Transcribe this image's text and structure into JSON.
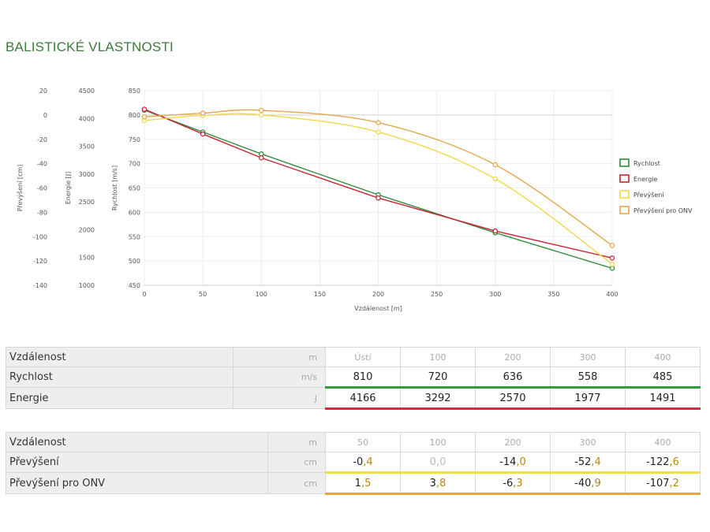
{
  "title": "BALISTICKÉ VLASTNOSTI",
  "chart_data": {
    "type": "line",
    "xlabel": "Vzdálenost [m]",
    "x_ticks": [
      0,
      50,
      100,
      150,
      200,
      250,
      300,
      350,
      400
    ],
    "xlim": [
      0,
      400
    ],
    "axes": [
      {
        "label": "Převýšení [cm]",
        "ticks": [
          20,
          0,
          -20,
          -40,
          -60,
          -80,
          -100,
          -120,
          -140
        ],
        "ylim": [
          -140,
          20
        ]
      },
      {
        "label": "Energie [J]",
        "ticks": [
          4500,
          4000,
          3500,
          3000,
          2500,
          2000,
          1500,
          1000
        ],
        "ylim": [
          1000,
          4500
        ]
      },
      {
        "label": "Rychlost [m/s]",
        "ticks": [
          850,
          800,
          750,
          700,
          650,
          600,
          550,
          500,
          450
        ],
        "ylim": [
          450,
          850
        ]
      }
    ],
    "series": [
      {
        "name": "Rychlost",
        "color": "#2e8b3a",
        "axis": 2,
        "x": [
          0,
          50,
          100,
          200,
          300,
          400
        ],
        "values": [
          810,
          765,
          720,
          636,
          558,
          485
        ]
      },
      {
        "name": "Energie",
        "color": "#cc2233",
        "axis": 1,
        "x": [
          0,
          50,
          100,
          200,
          300,
          400
        ],
        "values": [
          4166,
          3720,
          3292,
          2570,
          1977,
          1491
        ]
      },
      {
        "name": "Převýšení",
        "color": "#f0d84a",
        "axis": 0,
        "x": [
          0,
          50,
          100,
          200,
          300,
          400
        ],
        "values": [
          -4.5,
          -0.4,
          0.0,
          -14.0,
          -52.4,
          -122.6
        ]
      },
      {
        "name": "Převýšení pro ONV",
        "color": "#e5a64a",
        "axis": 0,
        "x": [
          0,
          50,
          100,
          200,
          300,
          400
        ],
        "values": [
          -1.5,
          1.5,
          3.8,
          -6.3,
          -40.9,
          -107.2
        ]
      }
    ],
    "legend": "right"
  },
  "table1": {
    "header": {
      "label": "Vzdálenost",
      "unit": "m",
      "values": [
        "Ústí",
        "100",
        "200",
        "300",
        "400"
      ]
    },
    "rows": [
      {
        "label": "Rychlost",
        "unit": "m/s",
        "values": [
          "810",
          "720",
          "636",
          "558",
          "485"
        ]
      },
      {
        "label": "Energie",
        "unit": "J",
        "values": [
          "4166",
          "3292",
          "2570",
          "1977",
          "1491"
        ]
      }
    ]
  },
  "table2": {
    "header": {
      "label": "Vzdálenost",
      "unit": "m",
      "values": [
        "50",
        "100",
        "200",
        "300",
        "400"
      ]
    },
    "rows": [
      {
        "label": "Převýšení",
        "unit": "cm",
        "values": [
          [
            "-0",
            ",4"
          ],
          [
            "0",
            ",0"
          ],
          [
            "-14",
            ",0"
          ],
          [
            "-52",
            ",4"
          ],
          [
            "-122",
            ",6"
          ]
        ]
      },
      {
        "label": "Převýšení pro ONV",
        "unit": "cm",
        "values": [
          [
            "1",
            ",5"
          ],
          [
            "3",
            ",8"
          ],
          [
            "-6",
            ",3"
          ],
          [
            "-40",
            ",9"
          ],
          [
            "-107",
            ",2"
          ]
        ]
      }
    ]
  }
}
